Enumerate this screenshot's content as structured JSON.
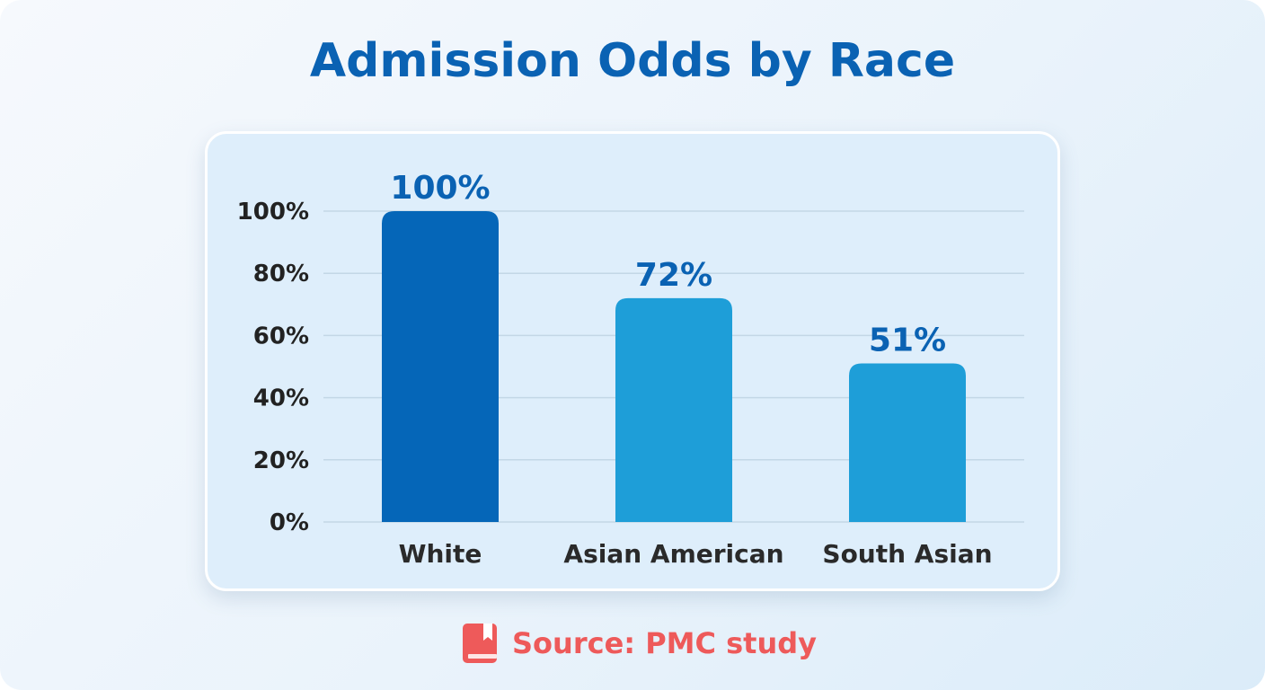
{
  "title": "Admission Odds by Race",
  "source": {
    "text": "Source: PMC study",
    "icon": "book-icon",
    "color": "#ee5a5a"
  },
  "colors": {
    "title": "#0a62b3",
    "bar_primary": "#0566b8",
    "bar_secondary": "#1e9ed8",
    "data_label": "#0a62b3"
  },
  "chart_data": {
    "type": "bar",
    "categories": [
      "White",
      "Asian American",
      "South Asian"
    ],
    "values": [
      100,
      72,
      51
    ],
    "value_labels": [
      "100%",
      "72%",
      "51%"
    ],
    "y_ticks": [
      "0%",
      "20%",
      "40%",
      "60%",
      "80%",
      "100%"
    ],
    "ylim": [
      0,
      100
    ],
    "grid": true,
    "legend": "none",
    "title": "Admission Odds by Race"
  }
}
